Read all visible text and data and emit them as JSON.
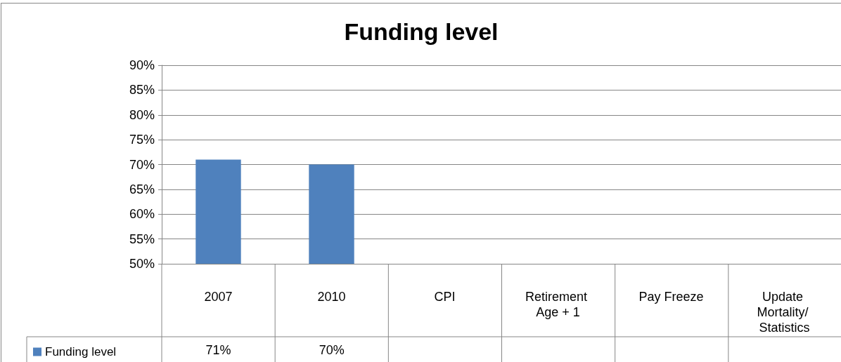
{
  "chart_data": {
    "type": "bar",
    "title": "Funding level",
    "categories": [
      "2007",
      "2010",
      "CPI",
      "Retirement Age + 1",
      "Pay Freeze",
      "Update Mortality/ Statistics"
    ],
    "series": [
      {
        "name": "Funding level",
        "color": "#4f81bd",
        "values": [
          71,
          70,
          null,
          null,
          null,
          null
        ],
        "value_labels": [
          "71%",
          "70%",
          null,
          null,
          null,
          null
        ]
      }
    ],
    "ylim": [
      50,
      90
    ],
    "yticks": [
      {
        "value": 50,
        "label": "50%"
      },
      {
        "value": 55,
        "label": "55%"
      },
      {
        "value": 60,
        "label": "60%"
      },
      {
        "value": 65,
        "label": "65%"
      },
      {
        "value": 70,
        "label": "70%"
      },
      {
        "value": 75,
        "label": "75%"
      },
      {
        "value": 80,
        "label": "80%"
      },
      {
        "value": 85,
        "label": "85%"
      },
      {
        "value": 90,
        "label": "90%"
      }
    ],
    "grid": "y",
    "legend": "bottom left"
  }
}
